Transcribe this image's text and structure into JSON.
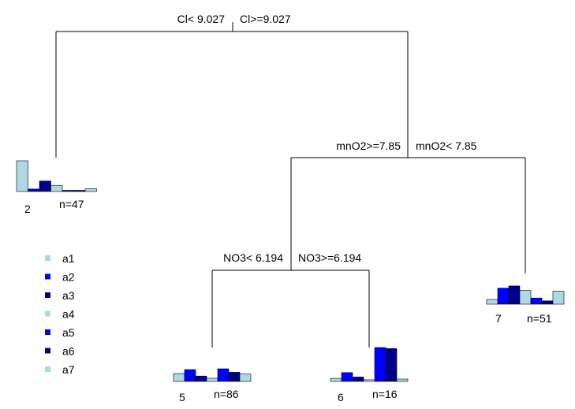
{
  "colors": {
    "a1": "#add8e6",
    "a2": "#0000ff",
    "a3": "#00008b",
    "a4": "#add8e6",
    "a5": "#0000ff",
    "a6": "#00008b",
    "a7": "#add8e6"
  },
  "splits": {
    "root": {
      "left": "Cl< 9.027",
      "right": "Cl>=9.027"
    },
    "node_mno2": {
      "left": "mnO2>=7.85",
      "right": "mnO2< 7.85"
    },
    "node_no3": {
      "left": "NO3< 6.194",
      "right": "NO3>=6.194"
    }
  },
  "leaves": [
    {
      "id": "2",
      "n": "n=47",
      "values": [
        1.0,
        0.08,
        0.34,
        0.2,
        0.03,
        0.03,
        0.09
      ]
    },
    {
      "id": "5",
      "n": "n=86",
      "values": [
        0.5,
        0.75,
        0.34,
        0.2,
        0.8,
        0.58,
        0.47
      ]
    },
    {
      "id": "6",
      "n": "n=16",
      "values": [
        0.09,
        0.26,
        0.13,
        0.05,
        1.0,
        0.97,
        0.07
      ]
    },
    {
      "id": "7",
      "n": "n=51",
      "values": [
        0.2,
        0.68,
        0.77,
        0.58,
        0.26,
        0.14,
        0.55
      ]
    }
  ],
  "legend": [
    {
      "label": "a1",
      "color": "#add8e6"
    },
    {
      "label": "a2",
      "color": "#0000ff"
    },
    {
      "label": "a3",
      "color": "#00008b"
    },
    {
      "label": "a4",
      "color": "#add8e6"
    },
    {
      "label": "a5",
      "color": "#0000ff"
    },
    {
      "label": "a6",
      "color": "#00008b"
    },
    {
      "label": "a7",
      "color": "#add8e6"
    }
  ]
}
